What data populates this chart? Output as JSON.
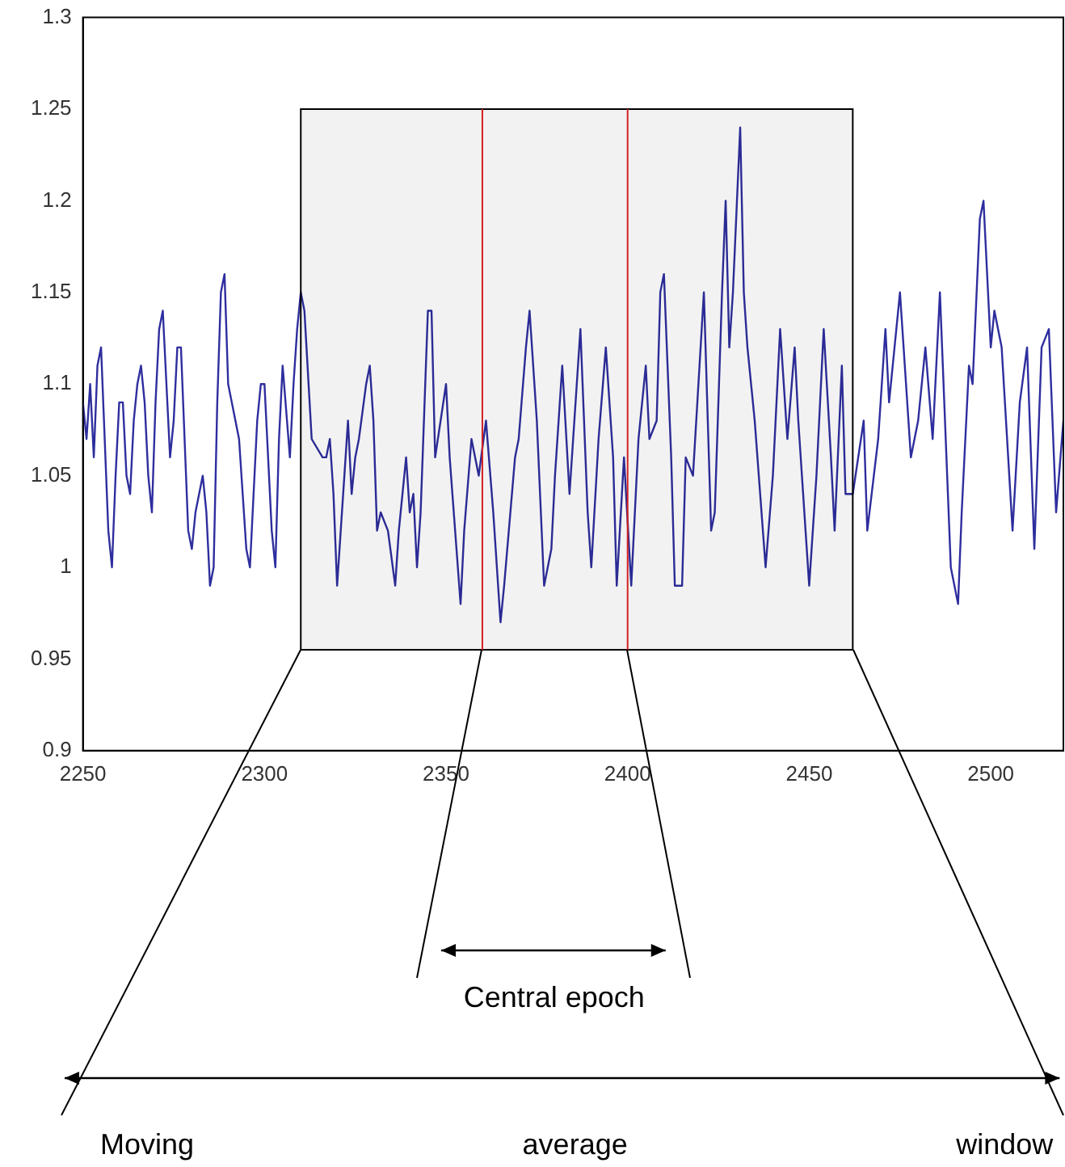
{
  "chart_data": {
    "type": "line",
    "color": "#2e2e9e",
    "x": [
      2250,
      2251,
      2252,
      2253,
      2254,
      2255,
      2256,
      2257,
      2258,
      2259,
      2260,
      2261,
      2262,
      2263,
      2264,
      2265,
      2266,
      2267,
      2268,
      2269,
      2270,
      2271,
      2272,
      2273,
      2274,
      2275,
      2276,
      2277,
      2278,
      2279,
      2280,
      2281,
      2283,
      2284,
      2285,
      2286,
      2287,
      2288,
      2289,
      2290,
      2291,
      2292,
      2293,
      2294,
      2295,
      2296,
      2297,
      2298,
      2299,
      2300,
      2302,
      2303,
      2304,
      2305,
      2307,
      2308,
      2309,
      2310,
      2311,
      2313,
      2316,
      2317,
      2318,
      2319,
      2320,
      2321,
      2322,
      2323,
      2324,
      2325,
      2326,
      2328,
      2329,
      2330,
      2331,
      2332,
      2334,
      2336,
      2337,
      2339,
      2340,
      2341,
      2342,
      2343,
      2345,
      2346,
      2347,
      2350,
      2351,
      2354,
      2355,
      2357,
      2359,
      2361,
      2363,
      2365,
      2366,
      2369,
      2370,
      2372,
      2373,
      2375,
      2377,
      2379,
      2380,
      2382,
      2384,
      2385,
      2387,
      2389,
      2390,
      2392,
      2394,
      2396,
      2397,
      2399,
      2401,
      2403,
      2405,
      2406,
      2408,
      2409,
      2410,
      2412,
      2413,
      2415,
      2416,
      2418,
      2421,
      2423,
      2424,
      2426,
      2427,
      2428,
      2429,
      2431,
      2432,
      2433,
      2435,
      2438,
      2440,
      2442,
      2444,
      2446,
      2447,
      2450,
      2452,
      2454,
      2456,
      2457,
      2459,
      2460,
      2462,
      2465,
      2466,
      2469,
      2471,
      2472,
      2475,
      2478,
      2480,
      2482,
      2484,
      2486,
      2488,
      2489,
      2491,
      2492,
      2494,
      2495,
      2497,
      2498,
      2500,
      2501,
      2503,
      2506,
      2508,
      2510,
      2512,
      2514,
      2516,
      2518,
      2520
    ],
    "values": [
      1.09,
      1.07,
      1.1,
      1.06,
      1.11,
      1.12,
      1.07,
      1.02,
      1.0,
      1.05,
      1.09,
      1.09,
      1.05,
      1.04,
      1.08,
      1.1,
      1.11,
      1.09,
      1.05,
      1.03,
      1.09,
      1.13,
      1.14,
      1.1,
      1.06,
      1.08,
      1.12,
      1.12,
      1.07,
      1.02,
      1.01,
      1.03,
      1.05,
      1.03,
      0.99,
      1.0,
      1.09,
      1.15,
      1.16,
      1.1,
      1.09,
      1.08,
      1.07,
      1.04,
      1.01,
      1.0,
      1.04,
      1.08,
      1.1,
      1.1,
      1.02,
      1.0,
      1.07,
      1.11,
      1.06,
      1.1,
      1.13,
      1.15,
      1.14,
      1.07,
      1.06,
      1.06,
      1.07,
      1.04,
      0.99,
      1.02,
      1.05,
      1.08,
      1.04,
      1.06,
      1.07,
      1.1,
      1.11,
      1.08,
      1.02,
      1.03,
      1.02,
      0.99,
      1.02,
      1.06,
      1.03,
      1.04,
      1.0,
      1.03,
      1.14,
      1.14,
      1.06,
      1.1,
      1.06,
      0.98,
      1.02,
      1.07,
      1.05,
      1.08,
      1.03,
      0.97,
      0.99,
      1.06,
      1.07,
      1.12,
      1.14,
      1.08,
      0.99,
      1.01,
      1.05,
      1.11,
      1.04,
      1.07,
      1.13,
      1.03,
      1.0,
      1.07,
      1.12,
      1.06,
      0.99,
      1.06,
      0.99,
      1.07,
      1.11,
      1.07,
      1.08,
      1.15,
      1.16,
      1.06,
      0.99,
      0.99,
      1.06,
      1.05,
      1.15,
      1.02,
      1.03,
      1.15,
      1.2,
      1.12,
      1.15,
      1.24,
      1.15,
      1.12,
      1.08,
      1.0,
      1.05,
      1.13,
      1.07,
      1.12,
      1.08,
      0.99,
      1.05,
      1.13,
      1.06,
      1.02,
      1.11,
      1.04,
      1.04,
      1.08,
      1.02,
      1.07,
      1.13,
      1.09,
      1.15,
      1.06,
      1.08,
      1.12,
      1.07,
      1.15,
      1.05,
      1.0,
      0.98,
      1.03,
      1.11,
      1.1,
      1.19,
      1.2,
      1.12,
      1.14,
      1.12,
      1.02,
      1.09,
      1.12,
      1.01,
      1.12,
      1.13,
      1.03,
      1.08
    ],
    "xlim": [
      2250,
      2520
    ],
    "xticks": [
      2250,
      2300,
      2350,
      2400,
      2450,
      2500
    ],
    "ylim": [
      0.9,
      1.3
    ],
    "yticks": [
      0.9,
      0.95,
      1,
      1.05,
      1.1,
      1.15,
      1.2,
      1.25,
      1.3
    ],
    "bands": [
      {
        "axis": "x",
        "from": 2310,
        "to": 2462,
        "label": "Moving average window",
        "color": "#000000"
      }
    ],
    "ref_lines": [
      {
        "axis": "x",
        "value": 2360,
        "color": "#d42020"
      },
      {
        "axis": "x",
        "value": 2400,
        "color": "#d42020"
      }
    ],
    "annotations": [
      "Central epoch"
    ]
  }
}
